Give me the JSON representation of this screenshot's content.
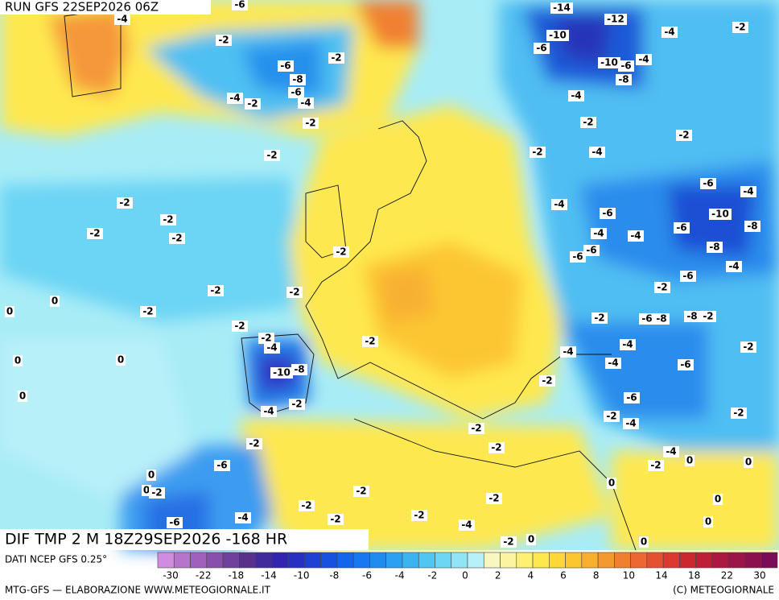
{
  "header": {
    "run": "RUN GFS 22SEP2026 06Z"
  },
  "map": {
    "field": "DIF TMP 2 M 18Z29SEP2026 -168 HR",
    "labels": [
      -4,
      -6,
      -2,
      -2,
      -6,
      -8,
      -6,
      -4,
      -4,
      -2,
      -2,
      -2,
      -14,
      -12,
      -10,
      -6,
      -10,
      -6,
      -4,
      -8,
      -4,
      -2,
      -2,
      -4,
      -4,
      -2,
      -2,
      -4,
      -6,
      -6,
      -10,
      -6,
      -8,
      -8,
      -4,
      -4,
      -4,
      -6,
      -6,
      -4,
      -6,
      -2,
      -2,
      -2,
      -2,
      -2,
      -2,
      -2,
      -2,
      -2,
      -2,
      0,
      0,
      0,
      0,
      0,
      -2,
      -4,
      -10,
      -8,
      -2,
      -4,
      -2,
      -4,
      -4,
      -4,
      -6,
      -2,
      -2,
      -6,
      -2,
      -4,
      -2,
      -2,
      -2,
      -6,
      0,
      0,
      -2,
      -6,
      -4,
      -2,
      -2,
      -2,
      -2,
      -4,
      -2,
      -2,
      0,
      -4,
      -2,
      0,
      0,
      0,
      0,
      -2,
      0,
      0,
      -6,
      -8,
      -2,
      -8,
      -2
    ]
  },
  "colorbar": {
    "source": "DATI NCEP GFS 0.25°",
    "colors": [
      "#d08ce0",
      "#b874cc",
      "#a060bc",
      "#8850ac",
      "#70409c",
      "#58308c",
      "#402a9c",
      "#3024b0",
      "#2830c4",
      "#2040d4",
      "#1850e0",
      "#1464ec",
      "#1878f0",
      "#208cf2",
      "#2ca0f2",
      "#3cb4f2",
      "#50c6f2",
      "#6cd6f4",
      "#90e4f6",
      "#b8f0f8",
      "#f6f8c0",
      "#fcf4a0",
      "#fef070",
      "#fee850",
      "#fed838",
      "#fcc630",
      "#f8b030",
      "#f49830",
      "#f08030",
      "#ec6830",
      "#e45030",
      "#dc3830",
      "#cc2830",
      "#bc2038",
      "#ac1840",
      "#9c1448",
      "#8c1050",
      "#7c0c58"
    ],
    "labels": [
      -30,
      -22,
      -18,
      -14,
      -10,
      -8,
      -6,
      -4,
      -2,
      0,
      2,
      4,
      6,
      8,
      10,
      14,
      18,
      22,
      30
    ]
  },
  "footer": {
    "left": "MTG-GFS — ELABORAZIONE WWW.METEOGIORNALE.IT",
    "right": "(C) METEOGIORNALE"
  }
}
